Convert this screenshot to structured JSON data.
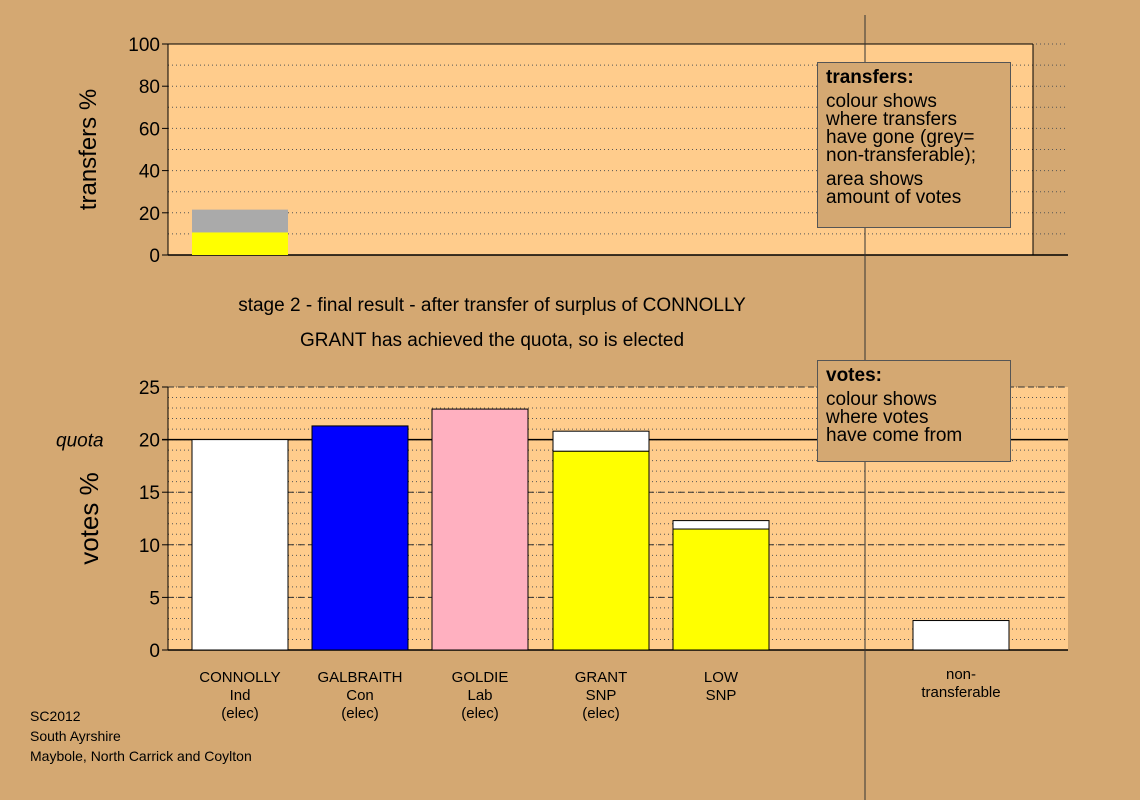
{
  "chart_data": [
    {
      "type": "bar",
      "stacked": true,
      "ylabel": "transfers %",
      "ylim": [
        0,
        100
      ],
      "yticks": [
        0,
        20,
        40,
        60,
        80,
        100
      ],
      "grid": "dotted",
      "bars": [
        {
          "candidate_index": 0,
          "segments": [
            {
              "color": "#ffff00",
              "value": 10.7
            },
            {
              "color": "#aaaaaa",
              "value": 10.8
            }
          ]
        }
      ],
      "legend": {
        "title": "transfers:",
        "lines": [
          "colour shows\nwhere transfers\nhave gone (grey=\nnon-transferable);",
          "area shows\namount of votes"
        ]
      }
    },
    {
      "type": "bar",
      "stacked": true,
      "ylabel": "votes %",
      "ylim": [
        0,
        25
      ],
      "yticks": [
        0,
        5,
        10,
        15,
        20,
        25
      ],
      "quota": 20,
      "quota_label": "quota",
      "grid": "dotted",
      "bars": [
        {
          "candidate_index": 0,
          "segments": [
            {
              "color": "#ffffff",
              "value": 20.0
            }
          ]
        },
        {
          "candidate_index": 1,
          "segments": [
            {
              "color": "#0000ff",
              "value": 21.3
            }
          ]
        },
        {
          "candidate_index": 2,
          "segments": [
            {
              "color": "#ffb0c0",
              "value": 22.9
            }
          ]
        },
        {
          "candidate_index": 3,
          "segments": [
            {
              "color": "#ffff00",
              "value": 18.9
            },
            {
              "color": "#ffffff",
              "value": 1.9
            }
          ]
        },
        {
          "candidate_index": 4,
          "segments": [
            {
              "color": "#ffff00",
              "value": 11.5
            },
            {
              "color": "#ffffff",
              "value": 0.8
            }
          ]
        },
        {
          "candidate_index": 5,
          "segments": [
            {
              "color": "#ffffff",
              "value": 2.8
            }
          ]
        }
      ],
      "legend": {
        "title": "votes:",
        "lines": [
          "colour shows\nwhere votes\nhave come from"
        ]
      }
    }
  ],
  "candidates": [
    {
      "lines": [
        "CONNOLLY",
        "Ind",
        "(elec)"
      ]
    },
    {
      "lines": [
        "GALBRAITH",
        "Con",
        "(elec)"
      ]
    },
    {
      "lines": [
        "GOLDIE",
        "Lab",
        "(elec)"
      ]
    },
    {
      "lines": [
        "GRANT",
        "SNP",
        "(elec)"
      ]
    },
    {
      "lines": [
        "LOW",
        "SNP"
      ]
    },
    {
      "lines": [
        "non-",
        "transferable"
      ]
    }
  ],
  "captions": {
    "stage": "stage 2 - final result - after transfer of surplus of CONNOLLY",
    "result": "GRANT has achieved the quota, so is elected"
  },
  "footer": {
    "election": "SC2012",
    "council": "South Ayrshire",
    "ward": "Maybole, North Carrick and Coylton"
  },
  "colors": {
    "background": "#d4a872",
    "plot_area": "#ffcc8c"
  }
}
